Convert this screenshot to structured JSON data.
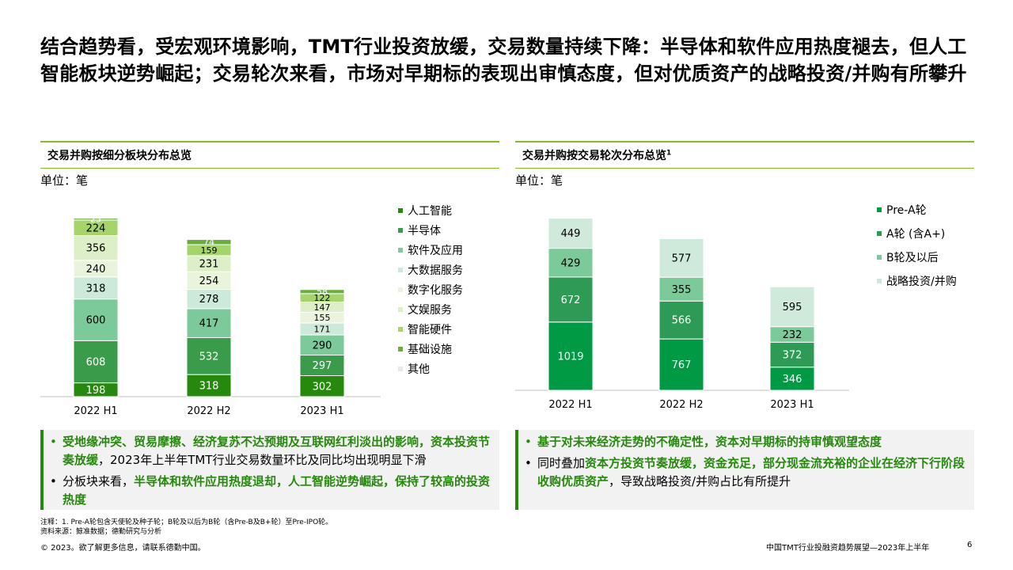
{
  "title": "结合趋势看，受宏观环境影响，TMT行业投资放缓，交易数量持续下降：半导体和软件应用热度褪去，但人工智能板块逆势崛起；交易轮次来看，市场对早期标的表现出审慎态度，但对优质资产的战略投资/并购有所攀升",
  "colors": {
    "accent_green": "#86bc25",
    "dark_green": "#26890d"
  },
  "left_panel": {
    "title": "交易并购按细分板块分布总览",
    "unit": "单位：笔",
    "bullets": [
      {
        "highlight": "受地缘冲突、贸易摩擦、经济复苏不达预期及互联网红利淡出的影响，资本投资节奏放缓",
        "rest": "，2023年上半年TMT行业交易数量环比及同比均出现明显下滑"
      },
      {
        "lead": "分板块来看，",
        "highlight": "半导体和软件应用热度退却，人工智能逆势崛起，保持了较高的投资热度"
      }
    ]
  },
  "right_panel": {
    "title": "交易并购按交易轮次分布总览",
    "title_sup": "1",
    "unit": "单位：笔",
    "bullets": [
      {
        "highlight": "基于对未来经济走势的不确定性，资本对早期标的持审慎观望态度"
      },
      {
        "lead": "同时叠加",
        "highlight": "资本方投资节奏放缓，资金充足，部分现金流充裕的企业在经济下行阶段收购优质资产",
        "rest": "，导致战略投资/并购占比有所提升"
      }
    ]
  },
  "chart_data": [
    {
      "type": "bar",
      "stacked": true,
      "categories": [
        "2022 H1",
        "2022 H2",
        "2023 H1"
      ],
      "series": [
        {
          "name": "人工智能",
          "color": "#26890d",
          "values": [
            198,
            318,
            302
          ]
        },
        {
          "name": "半导体",
          "color": "#3a9c4a",
          "values": [
            608,
            532,
            297
          ]
        },
        {
          "name": "软件及应用",
          "color": "#7cc99a",
          "values": [
            600,
            417,
            290
          ]
        },
        {
          "name": "大数据服务",
          "color": "#cde9da",
          "values": [
            318,
            278,
            171
          ]
        },
        {
          "name": "数字化服务",
          "color": "#eaf4dc",
          "values": [
            240,
            254,
            155
          ]
        },
        {
          "name": "文娱服务",
          "color": "#ddefc6",
          "values": [
            356,
            231,
            147
          ]
        },
        {
          "name": "智能硬件",
          "color": "#a4d46a",
          "values": [
            224,
            159,
            122
          ]
        },
        {
          "name": "基础设施",
          "color": "#6aad3c",
          "values": [
            25,
            74,
            58
          ]
        },
        {
          "name": "其他",
          "color": "#e8e8e8",
          "values": [
            0,
            0,
            0
          ]
        }
      ],
      "legend_position": "right",
      "grid": false
    },
    {
      "type": "bar",
      "stacked": true,
      "categories": [
        "2022 H1",
        "2022 H2",
        "2023 H1"
      ],
      "series": [
        {
          "name": "Pre-A轮",
          "color": "#009a44",
          "values": [
            1019,
            767,
            346
          ]
        },
        {
          "name": "A轮 (含A+)",
          "color": "#2d9b55",
          "values": [
            672,
            566,
            372
          ]
        },
        {
          "name": "B轮及以后",
          "color": "#7cc99a",
          "values": [
            429,
            355,
            232
          ]
        },
        {
          "name": "战略投资/并购",
          "color": "#cfeadb",
          "values": [
            449,
            577,
            595
          ]
        }
      ],
      "legend_position": "right",
      "grid": false
    }
  ],
  "footnotes": [
    "注释：1. Pre-A轮包含天使轮及种子轮；B轮及以后为B轮（含Pre-B及B+轮）至Pre-IPO轮。",
    "资料来源：鲸准数据；德勤研究与分析"
  ],
  "footer": {
    "copyright": "© 2023。欲了解更多信息，请联系德勤中国。",
    "report": "中国TMT行业投融资趋势展望—2023年上半年",
    "page": "6"
  }
}
